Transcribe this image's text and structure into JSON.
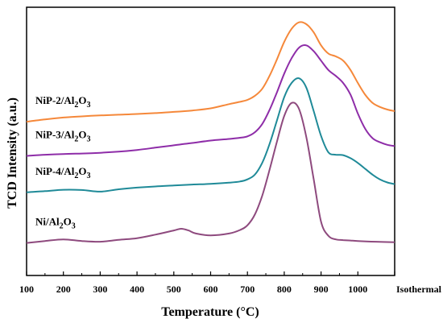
{
  "chart_data": {
    "type": "line",
    "xlabel": "Temperature (°C)",
    "ylabel": "TCD Intensity (a.u.)",
    "x_ticks": [
      "100",
      "200",
      "300",
      "400",
      "500",
      "600",
      "700",
      "800",
      "900",
      "1000",
      "Isothermal"
    ],
    "xlim": [
      100,
      1100
    ],
    "ylim": [
      0,
      100
    ],
    "grid": false,
    "legend": "inline-left",
    "series": [
      {
        "name": "NiP-2/Al2O3",
        "label_main": "NiP-2/Al",
        "label_sub1": "2",
        "label_mid": "O",
        "label_sub2": "3",
        "color": "#F5883A",
        "x": [
          100,
          150,
          200,
          250,
          300,
          350,
          400,
          450,
          500,
          550,
          600,
          650,
          680,
          700,
          720,
          740,
          760,
          780,
          800,
          820,
          840,
          860,
          880,
          900,
          920,
          940,
          960,
          980,
          1000,
          1020,
          1040,
          1060,
          1080,
          1100
        ],
        "y": [
          58.5,
          59.5,
          60.3,
          60.8,
          61.2,
          61.5,
          61.8,
          62.2,
          62.7,
          63.3,
          64.2,
          66.0,
          67.0,
          67.8,
          69.5,
          72.5,
          78.0,
          85.0,
          92.5,
          98.0,
          100.8,
          100.0,
          96.5,
          91.0,
          87.5,
          86.3,
          84.5,
          80.5,
          75.0,
          70.0,
          66.5,
          64.8,
          63.7,
          63.0
        ]
      },
      {
        "name": "NiP-3/Al2O3",
        "label_main": "NiP-3/Al",
        "label_sub1": "2",
        "label_mid": "O",
        "label_sub2": "3",
        "color": "#8E2DA8",
        "x": [
          100,
          150,
          200,
          250,
          300,
          350,
          400,
          450,
          500,
          550,
          600,
          650,
          680,
          700,
          720,
          740,
          760,
          780,
          800,
          820,
          840,
          860,
          880,
          900,
          920,
          940,
          960,
          980,
          1000,
          1020,
          1040,
          1060,
          1080,
          1100
        ],
        "y": [
          44.0,
          44.5,
          44.8,
          45.0,
          45.3,
          45.8,
          46.5,
          47.5,
          48.5,
          49.5,
          50.5,
          51.2,
          51.7,
          52.3,
          54.0,
          57.5,
          63.5,
          71.0,
          79.0,
          85.5,
          90.0,
          91.0,
          88.5,
          84.5,
          80.5,
          78.0,
          75.0,
          70.0,
          62.0,
          55.5,
          51.5,
          49.8,
          48.7,
          48.2
        ]
      },
      {
        "name": "NiP-4/Al2O3",
        "label_main": "NiP-4/Al",
        "label_sub1": "2",
        "label_mid": "O",
        "label_sub2": "3",
        "color": "#1F8A98",
        "x": [
          100,
          150,
          200,
          250,
          300,
          350,
          400,
          450,
          500,
          550,
          600,
          650,
          680,
          700,
          720,
          740,
          760,
          780,
          800,
          820,
          840,
          860,
          880,
          900,
          920,
          940,
          960,
          980,
          1000,
          1020,
          1040,
          1060,
          1080,
          1100
        ],
        "y": [
          28.5,
          29.0,
          29.6,
          29.5,
          28.8,
          29.8,
          30.5,
          31.0,
          31.4,
          31.8,
          32.1,
          32.6,
          33.1,
          34.0,
          36.0,
          41.0,
          49.0,
          59.0,
          69.0,
          75.0,
          77.0,
          73.0,
          63.0,
          52.5,
          45.5,
          44.5,
          44.3,
          43.0,
          41.0,
          38.5,
          36.0,
          34.0,
          32.7,
          32.0
        ]
      },
      {
        "name": "Ni/Al2O3",
        "label_main": "Ni/Al",
        "label_sub1": "2",
        "label_mid": "O",
        "label_sub2": "3",
        "color": "#8E4A7E",
        "x": [
          100,
          150,
          200,
          250,
          300,
          350,
          400,
          450,
          500,
          520,
          540,
          560,
          600,
          650,
          680,
          700,
          720,
          740,
          760,
          780,
          800,
          820,
          840,
          860,
          880,
          900,
          920,
          940,
          960,
          980,
          1000,
          1050,
          1100
        ],
        "y": [
          7.0,
          7.8,
          8.5,
          7.8,
          7.5,
          8.3,
          9.0,
          10.5,
          12.3,
          13.0,
          12.3,
          11.0,
          10.2,
          11.0,
          12.5,
          14.5,
          19.0,
          27.0,
          38.0,
          50.0,
          61.0,
          66.5,
          64.0,
          52.0,
          34.0,
          16.0,
          10.0,
          8.5,
          8.2,
          8.0,
          7.8,
          7.5,
          7.3
        ]
      }
    ]
  }
}
